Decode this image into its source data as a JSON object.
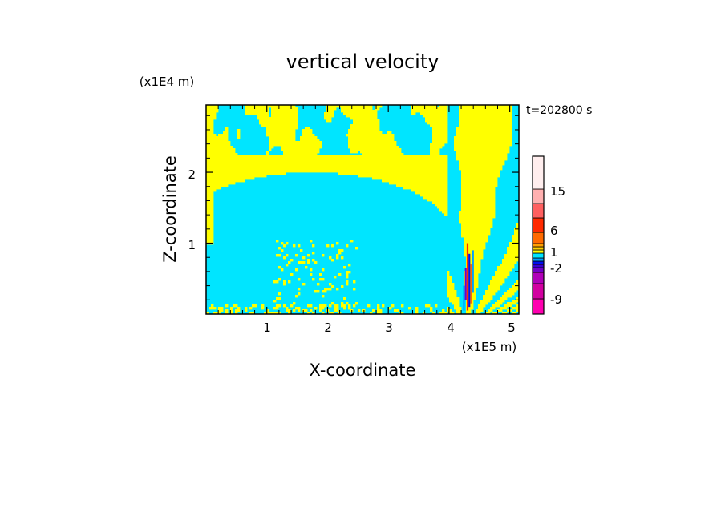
{
  "chart_data": {
    "type": "heatmap",
    "title": "vertical velocity",
    "xlabel": "X-coordinate",
    "ylabel": "Z-coordinate",
    "x_unit": "(x1E5 m)",
    "y_unit": "(x1E4 m)",
    "time_label": "t=202800 s",
    "xlim": [
      0,
      5.15
    ],
    "ylim": [
      0,
      2.95
    ],
    "x_ticks": [
      1,
      2,
      3,
      4,
      5
    ],
    "y_ticks": [
      1,
      2
    ],
    "x_tick_labels": [
      "1",
      "2",
      "3",
      "4",
      "5"
    ],
    "y_tick_labels": [
      "1",
      "2"
    ],
    "field_colors": {
      "positive_weak": "#ffff00",
      "negative_weak": "#00e5ff"
    },
    "colorbar": {
      "levels": [
        {
          "color": "#ff00b0"
        },
        {
          "color": "#d200a0"
        },
        {
          "color": "#b000b8"
        },
        {
          "color": "#7000c8"
        },
        {
          "color": "#3a00d0"
        },
        {
          "color": "#0010f0"
        },
        {
          "color": "#00a0ff"
        },
        {
          "color": "#00e5ff"
        },
        {
          "color": "#ffff00"
        },
        {
          "color": "#ffd000"
        },
        {
          "color": "#ffa000"
        },
        {
          "color": "#ff6a00"
        },
        {
          "color": "#ff2a00"
        },
        {
          "color": "#ff6060"
        },
        {
          "color": "#ffb0b0"
        },
        {
          "color": "#ffeeee"
        }
      ],
      "tick_labels": [
        {
          "label": "15",
          "value": 15
        },
        {
          "label": "6",
          "value": 6
        },
        {
          "label": "1",
          "value": 1
        },
        {
          "label": "-2",
          "value": -2
        },
        {
          "label": "-9",
          "value": -9
        }
      ]
    }
  }
}
